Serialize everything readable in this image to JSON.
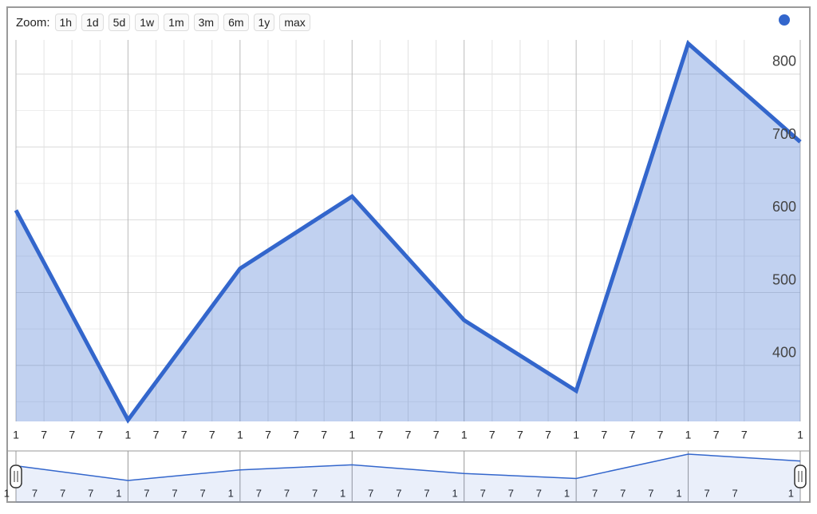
{
  "toolbar": {
    "label": "Zoom:",
    "buttons": [
      "1h",
      "1d",
      "5d",
      "1w",
      "1m",
      "3m",
      "6m",
      "1y",
      "max"
    ]
  },
  "chart_data": {
    "type": "area",
    "values": [
      613,
      325,
      533,
      632,
      462,
      365,
      842,
      707
    ],
    "color": "#3366cc",
    "ylim": [
      323,
      847
    ],
    "yticks": [
      400,
      500,
      600,
      700,
      800
    ],
    "xlim": [
      0,
      7
    ],
    "xticks": [
      {
        "value": 0,
        "label": "1"
      },
      {
        "value": 0.25,
        "label": "7"
      },
      {
        "value": 0.5,
        "label": "7"
      },
      {
        "value": 0.75,
        "label": "7"
      },
      {
        "value": 1,
        "label": "1"
      },
      {
        "value": 1.25,
        "label": "7"
      },
      {
        "value": 1.5,
        "label": "7"
      },
      {
        "value": 1.75,
        "label": "7"
      },
      {
        "value": 2,
        "label": "1"
      },
      {
        "value": 2.25,
        "label": "7"
      },
      {
        "value": 2.5,
        "label": "7"
      },
      {
        "value": 2.75,
        "label": "7"
      },
      {
        "value": 3,
        "label": "1"
      },
      {
        "value": 3.25,
        "label": "7"
      },
      {
        "value": 3.5,
        "label": "7"
      },
      {
        "value": 3.75,
        "label": "7"
      },
      {
        "value": 4,
        "label": "1"
      },
      {
        "value": 4.25,
        "label": "7"
      },
      {
        "value": 4.5,
        "label": "7"
      },
      {
        "value": 4.75,
        "label": "7"
      },
      {
        "value": 5,
        "label": "1"
      },
      {
        "value": 5.25,
        "label": "7"
      },
      {
        "value": 5.5,
        "label": "7"
      },
      {
        "value": 5.75,
        "label": "7"
      },
      {
        "value": 6,
        "label": "1"
      },
      {
        "value": 6.25,
        "label": "7"
      },
      {
        "value": 6.5,
        "label": "7"
      },
      {
        "value": 7,
        "label": "1"
      }
    ],
    "grid": true
  }
}
